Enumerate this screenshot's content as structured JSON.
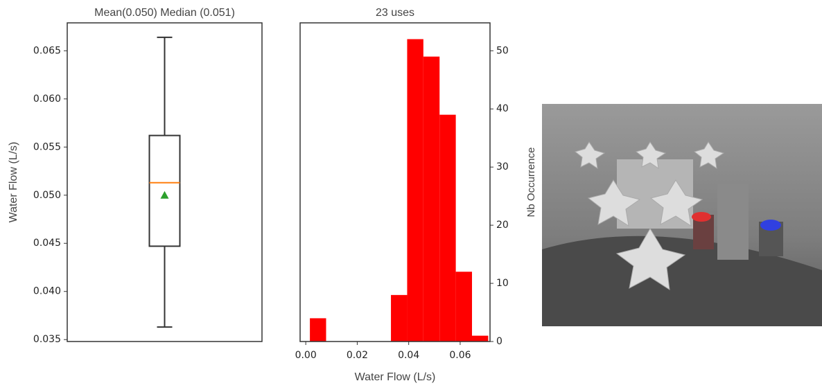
{
  "chart_data": [
    {
      "type": "box",
      "title": "Mean(0.050) Median (0.051)",
      "y_label": "Water Flow (L/s)",
      "whislo": 0.0363,
      "q1": 0.0447,
      "med": 0.0513,
      "q3": 0.0562,
      "whishi": 0.0664,
      "mean": 0.05,
      "median_color": "#ff7f0e",
      "mean_color": "#2ca02c",
      "ylim": [
        0.0348,
        0.0679
      ],
      "yticks": [
        0.035,
        {
          "value": 0.04,
          "label": "0.040"
        },
        0.045,
        {
          "value": 0.05,
          "label": "0.050"
        },
        0.055,
        {
          "value": 0.06,
          "label": "0.060"
        },
        0.065
      ]
    },
    {
      "type": "histogram",
      "title": "23 uses",
      "x_label": "Water Flow (L/s)",
      "y_label": "Nb Occurrence",
      "y_axis_side": "right",
      "color": "#ff0000",
      "bins": [
        0.0016,
        0.0079,
        0.0142,
        0.0205,
        0.0268,
        0.0331,
        0.0394,
        0.0457,
        0.052,
        0.0583,
        0.0646,
        0.0709
      ],
      "values": [
        4,
        0,
        0,
        0,
        0,
        8,
        52,
        49,
        39,
        12,
        1
      ],
      "xlim": [
        -0.0022,
        0.0716
      ],
      "ylim": [
        0,
        54.8
      ],
      "xticks": [
        {
          "value": 0,
          "label": "0.00"
        },
        {
          "value": 0.02,
          "label": "0.02"
        },
        {
          "value": 0.04,
          "label": "0.04"
        },
        {
          "value": 0.06,
          "label": "0.06"
        }
      ],
      "yticks": [
        0,
        10,
        20,
        30,
        40,
        50
      ]
    }
  ]
}
